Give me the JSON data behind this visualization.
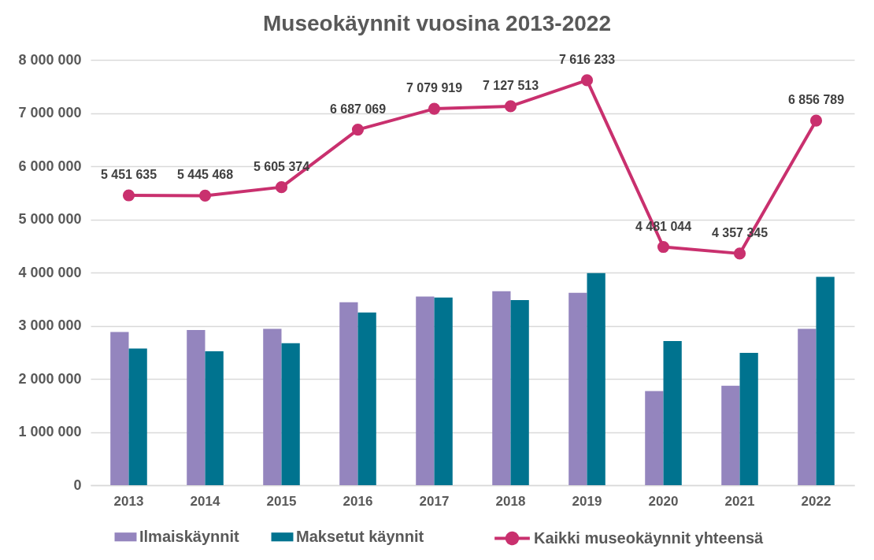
{
  "chart_data": {
    "type": "bar",
    "title": "Museokäynnit vuosina 2013-2022",
    "categories": [
      "2013",
      "2014",
      "2015",
      "2016",
      "2017",
      "2018",
      "2019",
      "2020",
      "2021",
      "2022"
    ],
    "series": [
      {
        "name": "Ilmaiskäynnit",
        "color": "#9485be",
        "values": [
          2880000,
          2920000,
          2940000,
          3440000,
          3550000,
          3650000,
          3620000,
          1770000,
          1870000,
          2940000
        ]
      },
      {
        "name": "Maksetut käynnit",
        "color": "#00738f",
        "values": [
          2570000,
          2520000,
          2670000,
          3250000,
          3530000,
          3480000,
          3990000,
          2710000,
          2490000,
          3920000
        ]
      },
      {
        "name": "Kaikki museokäynnit yhteensä",
        "type": "line",
        "color": "#c9306e",
        "marker": "circle",
        "line_style": "solid",
        "values": [
          5451635,
          5445468,
          5605374,
          6687069,
          7079919,
          7127513,
          7616233,
          4481044,
          4357345,
          6856789
        ],
        "value_labels": [
          "5 451 635",
          "5 445 468",
          "5 605 374",
          "6 687 069",
          "7 079 919",
          "7 127 513",
          "7 616 233",
          "4 481 044",
          "4 357 345",
          "6 856 789"
        ]
      }
    ],
    "ylim": [
      0,
      8000000
    ],
    "yticks": [
      0,
      {
        "value": 1000000,
        "label": "1 000 000"
      },
      {
        "value": 2000000,
        "label": "2 000 000"
      },
      {
        "value": 3000000,
        "label": "3 000 000"
      },
      {
        "value": 4000000,
        "label": "4 000 000"
      },
      {
        "value": 5000000,
        "label": "5 000 000"
      },
      {
        "value": 6000000,
        "label": "6 000 000"
      },
      {
        "value": 7000000,
        "label": "7 000 000"
      },
      {
        "value": 8000000,
        "label": "8 000 000"
      }
    ],
    "grid": "y",
    "legend": "bottom"
  }
}
